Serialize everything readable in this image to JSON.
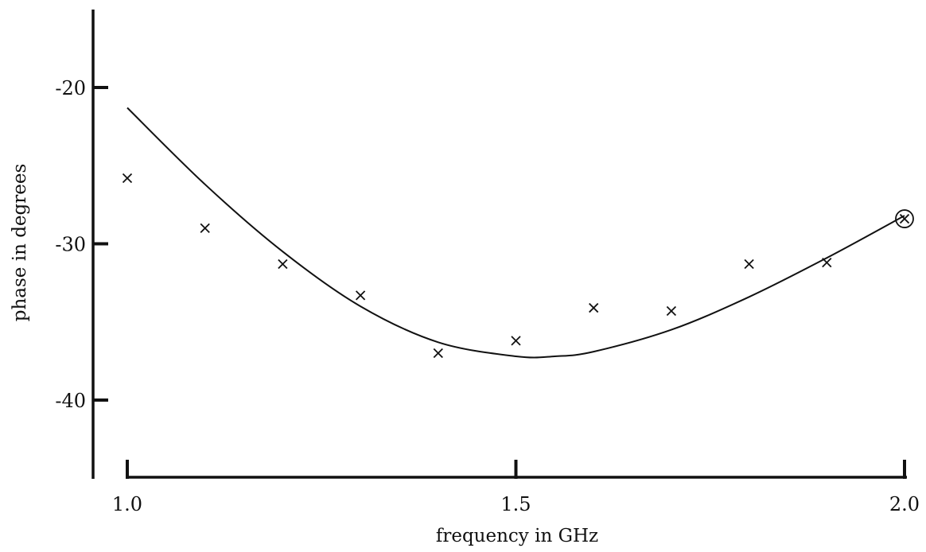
{
  "chart_data": {
    "type": "scatter",
    "title": "",
    "xlabel": "frequency in GHz",
    "ylabel": "phase in degrees",
    "xlim": [
      1.0,
      2.0
    ],
    "ylim": [
      -45,
      -15
    ],
    "x_ticks": [
      1.0,
      1.5,
      2.0
    ],
    "x_tick_labels": [
      "1.0",
      "1.5",
      "2.0"
    ],
    "y_ticks": [
      -20,
      -30,
      -40
    ],
    "y_tick_labels": [
      "-20",
      "-30",
      "-40"
    ],
    "grid": false,
    "legend": "none",
    "series": [
      {
        "style": "markers-x",
        "x": [
          1.0,
          1.1,
          1.2,
          1.3,
          1.4,
          1.5,
          1.6,
          1.7,
          1.8,
          1.9,
          2.0
        ],
        "y": [
          -25.8,
          -29.0,
          -31.3,
          -33.3,
          -37.0,
          -36.2,
          -34.1,
          -34.3,
          -31.3,
          -31.2,
          -28.4
        ],
        "circled_point_index": 10
      },
      {
        "style": "line",
        "x": [
          1.0,
          1.1,
          1.2,
          1.3,
          1.4,
          1.5,
          1.55,
          1.6,
          1.7,
          1.8,
          1.9,
          2.0
        ],
        "y": [
          -21.3,
          -26.2,
          -30.5,
          -34.0,
          -36.3,
          -37.2,
          -37.2,
          -36.9,
          -35.5,
          -33.4,
          -30.9,
          -28.2
        ]
      }
    ]
  }
}
